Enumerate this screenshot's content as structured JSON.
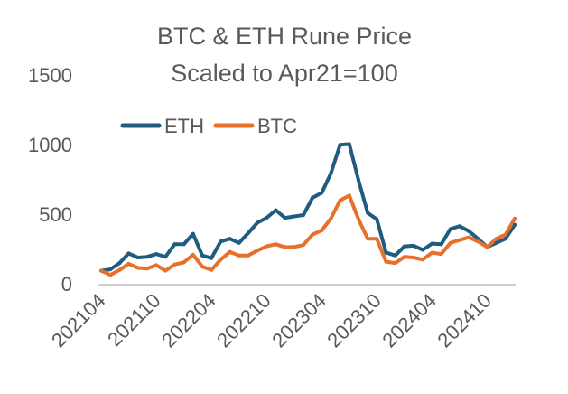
{
  "chart_data": {
    "type": "line",
    "title": [
      "BTC & ETH Rune Price",
      "Scaled to Apr21=100"
    ],
    "xlabel": "",
    "ylabel": "",
    "ylim": [
      0,
      1500
    ],
    "yticks": [
      "0",
      "500",
      "1000",
      "1500"
    ],
    "xticks": [
      "202104",
      "202110",
      "202204",
      "202210",
      "202304",
      "202310",
      "202404",
      "202410"
    ],
    "grid": false,
    "legend": "top-left",
    "colors": {
      "ETH": "#1F5C7F",
      "BTC": "#E8702A",
      "text": "#595959",
      "axis": "#BFBFBF"
    },
    "x": [
      "202104",
      "202105",
      "202106",
      "202107",
      "202108",
      "202109",
      "202110",
      "202111",
      "202112",
      "202201",
      "202202",
      "202203",
      "202204",
      "202205",
      "202206",
      "202207",
      "202208",
      "202209",
      "202210",
      "202211",
      "202212",
      "202301",
      "202302",
      "202303",
      "202304",
      "202305",
      "202306",
      "202307",
      "202308",
      "202309",
      "202310",
      "202311",
      "202312",
      "202401",
      "202402",
      "202403",
      "202404",
      "202405",
      "202406",
      "202407",
      "202408",
      "202409",
      "202410",
      "202411",
      "202412",
      "202501"
    ],
    "series": [
      {
        "name": "ETH",
        "values": [
          100,
          110,
          155,
          225,
          195,
          200,
          220,
          200,
          290,
          290,
          365,
          210,
          190,
          310,
          330,
          300,
          370,
          445,
          480,
          535,
          480,
          490,
          500,
          625,
          660,
          800,
          1005,
          1010,
          750,
          515,
          470,
          230,
          210,
          275,
          280,
          250,
          295,
          290,
          400,
          420,
          385,
          330,
          270,
          300,
          330,
          430
        ]
      },
      {
        "name": "BTC",
        "values": [
          100,
          70,
          105,
          150,
          120,
          115,
          140,
          100,
          145,
          160,
          215,
          130,
          105,
          180,
          235,
          210,
          210,
          245,
          275,
          290,
          270,
          270,
          285,
          360,
          390,
          475,
          605,
          640,
          470,
          330,
          330,
          165,
          155,
          200,
          195,
          180,
          230,
          220,
          300,
          320,
          340,
          310,
          270,
          330,
          360,
          475
        ]
      }
    ]
  }
}
